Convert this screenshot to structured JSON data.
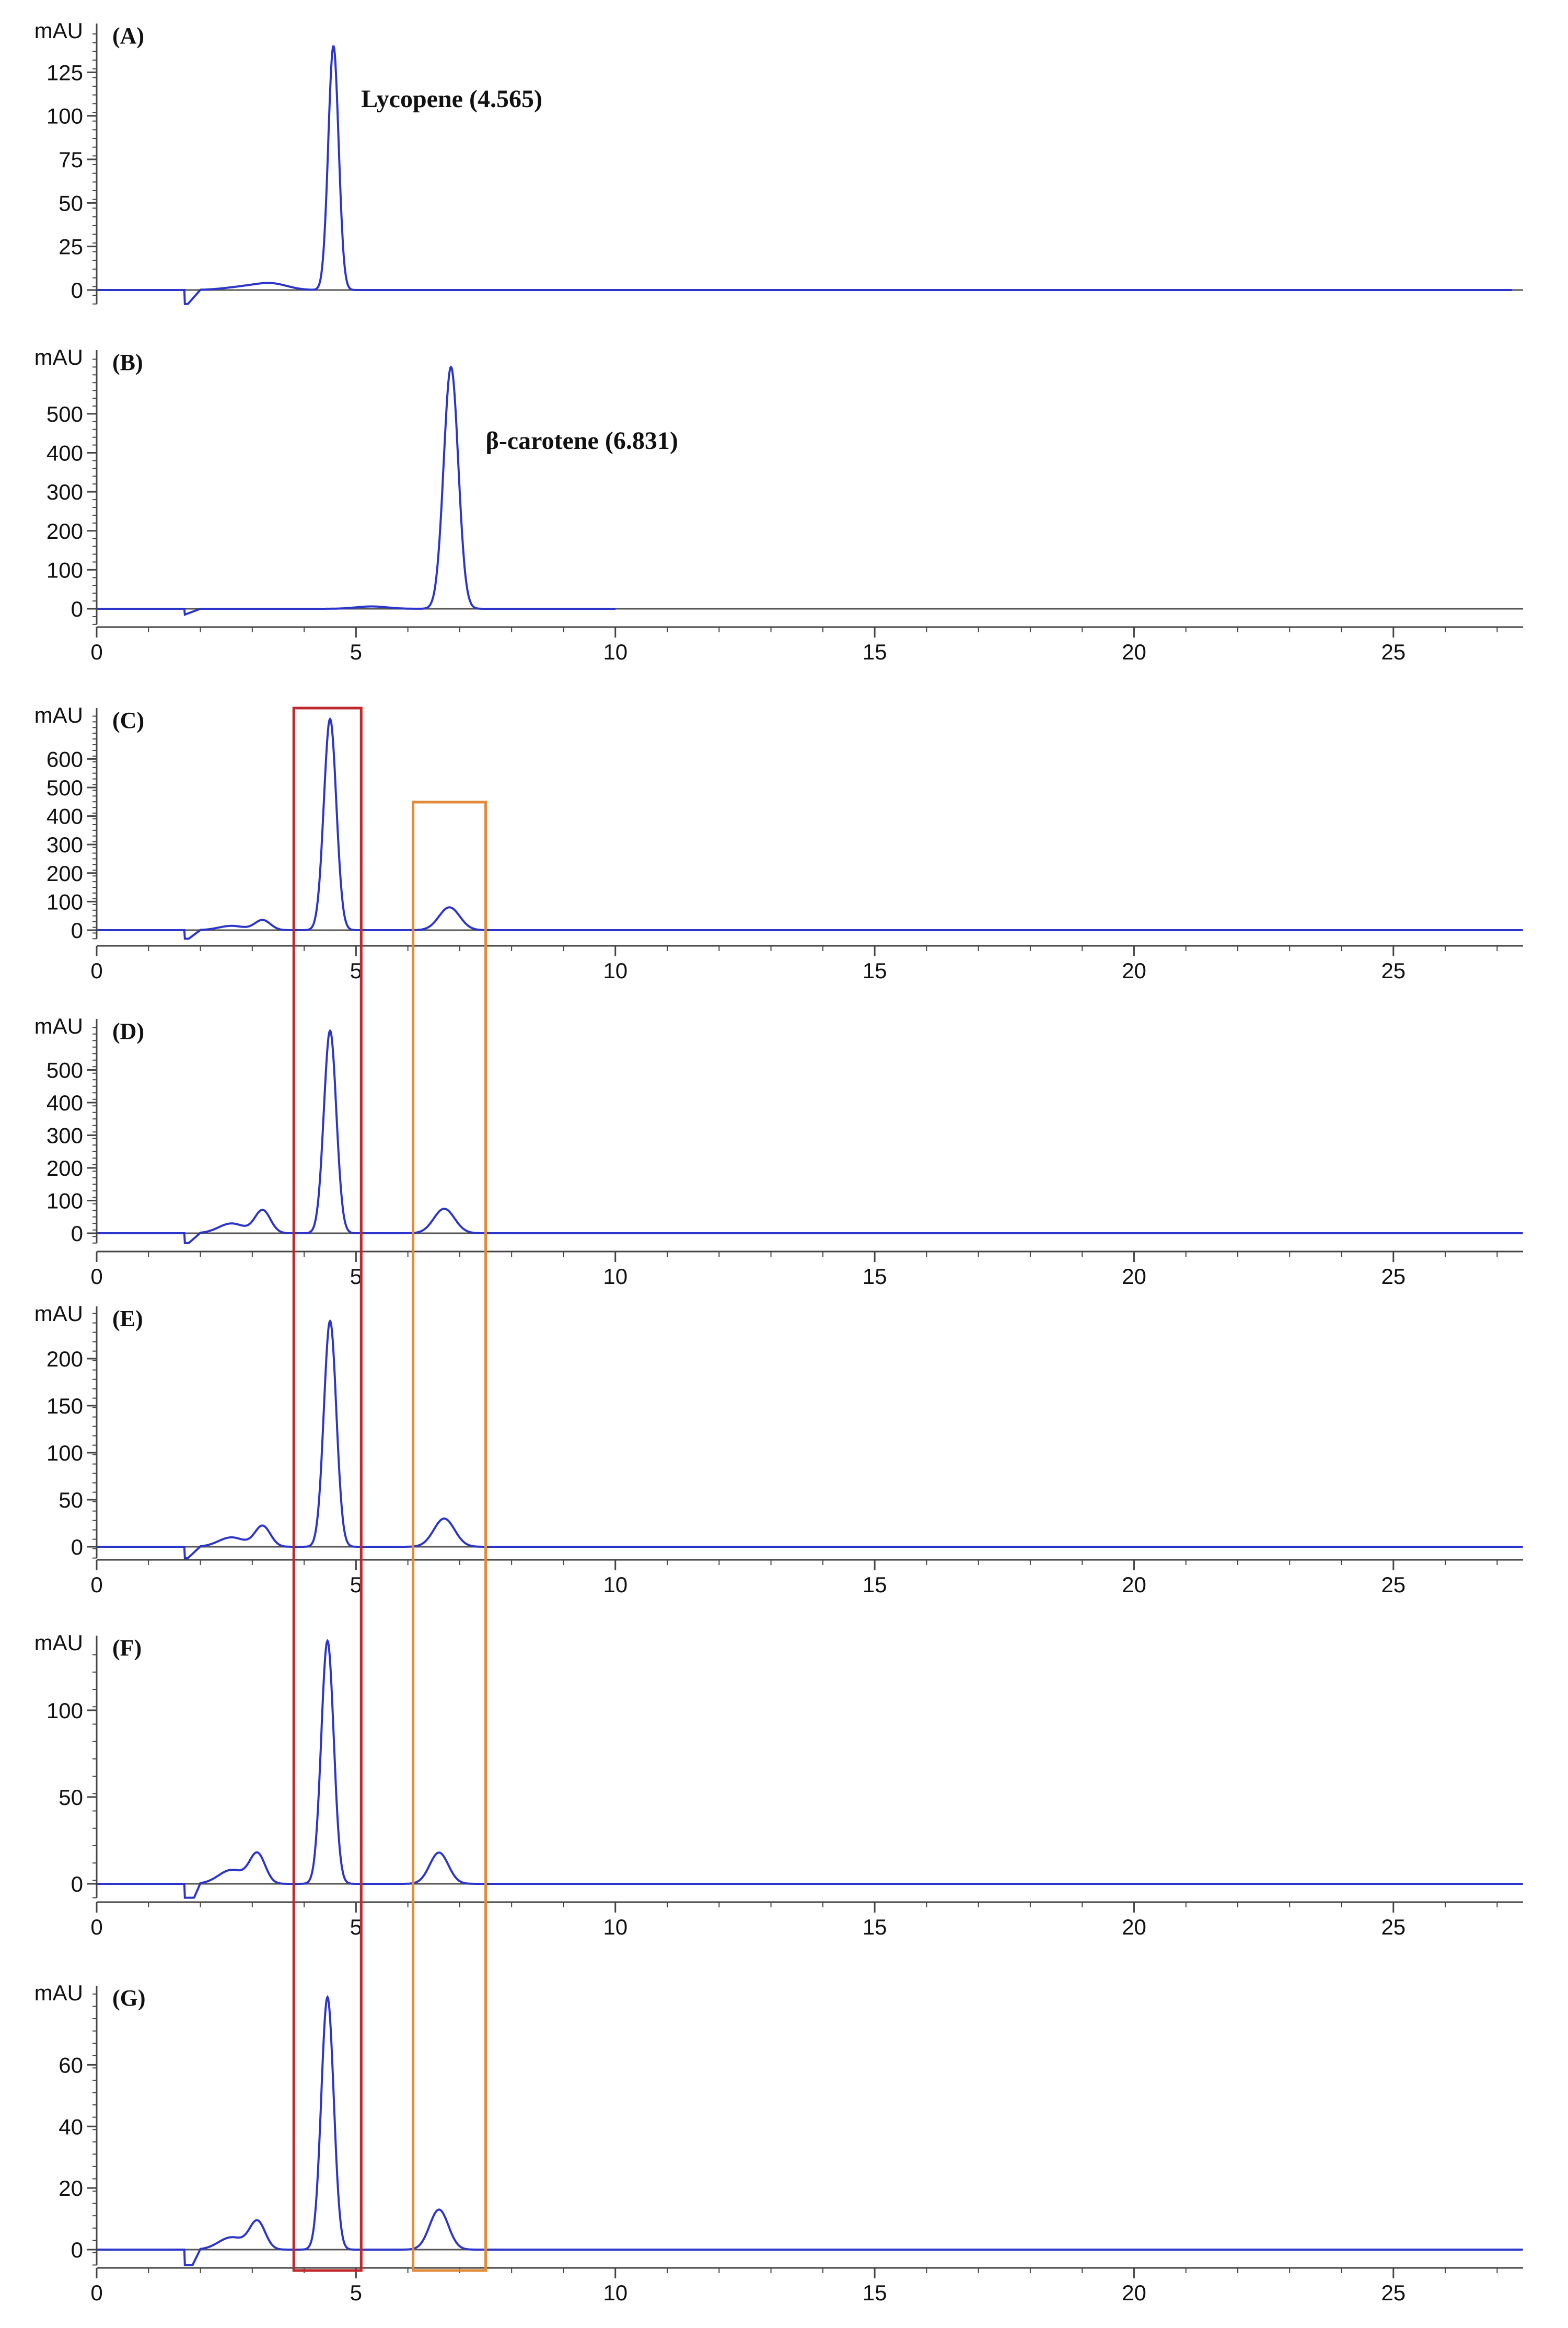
{
  "figure": {
    "colors": {
      "trace": "#2b35c9",
      "trace_dark": "#1c1f6b",
      "axis": "#444444",
      "baseline": "#555555",
      "text": "#111111",
      "box_lycopene": "#c0292b",
      "box_bcarotene": "#e08a3a"
    },
    "boxes": [
      {
        "name": "lycopene-window",
        "x0": 3.8,
        "x1": 5.1,
        "color_key": "box_lycopene"
      },
      {
        "name": "bcarotene-window",
        "x0": 6.1,
        "x1": 7.5,
        "color_key": "box_bcarotene"
      }
    ]
  },
  "chart_data": [
    {
      "type": "line",
      "panel": "(A)",
      "ylabel": "mAU",
      "xlim": [
        0,
        27.5
      ],
      "ylim": [
        -8,
        150
      ],
      "yticks": [
        0,
        25,
        50,
        75,
        100,
        125
      ],
      "xticks": [],
      "annotation": {
        "text": "Lycopene (4.565)",
        "x": 5.1,
        "y": 105
      },
      "series": [
        {
          "peaks": [
            [
              4.565,
              140,
              0.1
            ],
            [
              3.4,
              3,
              0.3
            ],
            [
              2.9,
              2,
              0.4
            ]
          ],
          "dip": [
            1.7,
            -10
          ],
          "trace_end": 27.3
        }
      ]
    },
    {
      "type": "line",
      "panel": "(B)",
      "ylabel": "mAU",
      "xlim": [
        0,
        27.5
      ],
      "ylim": [
        -40,
        650
      ],
      "yticks": [
        0,
        100,
        200,
        300,
        400,
        500
      ],
      "xticks": [
        0,
        5,
        10,
        15,
        20,
        25
      ],
      "annotation": {
        "text": "β-carotene (6.831)",
        "x": 7.5,
        "y": 410
      },
      "series": [
        {
          "peaks": [
            [
              6.831,
              620,
              0.14
            ],
            [
              5.3,
              6,
              0.3
            ]
          ],
          "dip": [
            1.7,
            -15
          ],
          "trace_end": 10
        }
      ]
    },
    {
      "type": "line",
      "panel": "(C)",
      "ylabel": "mAU",
      "xlim": [
        0,
        27.5
      ],
      "ylim": [
        -30,
        760
      ],
      "yticks": [
        0,
        100,
        200,
        300,
        400,
        500,
        600
      ],
      "xticks": [
        0,
        5,
        10,
        15,
        20,
        25
      ],
      "series": [
        {
          "peaks": [
            [
              4.5,
              740,
              0.12
            ],
            [
              6.8,
              80,
              0.2
            ],
            [
              3.2,
              35,
              0.15
            ],
            [
              2.6,
              15,
              0.25
            ]
          ],
          "dip": [
            1.7,
            -40
          ],
          "trace_end": 27.5
        }
      ]
    },
    {
      "type": "line",
      "panel": "(D)",
      "ylabel": "mAU",
      "xlim": [
        0,
        27.5
      ],
      "ylim": [
        -30,
        640
      ],
      "yticks": [
        0,
        100,
        200,
        300,
        400,
        500
      ],
      "xticks": [
        0,
        5,
        10,
        15,
        20,
        25
      ],
      "series": [
        {
          "peaks": [
            [
              4.5,
              620,
              0.12
            ],
            [
              6.7,
              75,
              0.2
            ],
            [
              3.2,
              70,
              0.15
            ],
            [
              2.6,
              30,
              0.25
            ]
          ],
          "dip": [
            1.7,
            -40
          ],
          "trace_end": 27.5
        }
      ]
    },
    {
      "type": "line",
      "panel": "(E)",
      "ylabel": "mAU",
      "xlim": [
        0,
        27.5
      ],
      "ylim": [
        -12,
        250
      ],
      "yticks": [
        0,
        50,
        100,
        150,
        200
      ],
      "xticks": [
        0,
        5,
        10,
        15,
        20,
        25
      ],
      "series": [
        {
          "peaks": [
            [
              4.5,
              240,
              0.12
            ],
            [
              6.7,
              30,
              0.2
            ],
            [
              3.2,
              22,
              0.15
            ],
            [
              2.6,
              10,
              0.25
            ]
          ],
          "dip": [
            1.7,
            -15
          ],
          "trace_end": 27.5
        }
      ]
    },
    {
      "type": "line",
      "panel": "(F)",
      "ylabel": "mAU",
      "xlim": [
        0,
        27.5
      ],
      "ylim": [
        -8,
        140
      ],
      "yticks": [
        0,
        50,
        100
      ],
      "xticks": [
        0,
        5,
        10,
        15,
        20,
        25
      ],
      "series": [
        {
          "peaks": [
            [
              4.45,
              140,
              0.12
            ],
            [
              6.6,
              18,
              0.18
            ],
            [
              3.1,
              17,
              0.15
            ],
            [
              2.6,
              8,
              0.25
            ]
          ],
          "dip": [
            1.7,
            -20
          ],
          "trace_end": 27.5
        }
      ]
    },
    {
      "type": "line",
      "panel": "(G)",
      "ylabel": "mAU",
      "xlim": [
        0,
        27.5
      ],
      "ylim": [
        -5,
        84
      ],
      "yticks": [
        0,
        20,
        40,
        60
      ],
      "xticks": [
        0,
        5,
        10,
        15,
        20,
        25
      ],
      "series": [
        {
          "peaks": [
            [
              4.45,
              82,
              0.12
            ],
            [
              6.6,
              13,
              0.18
            ],
            [
              3.1,
              9,
              0.15
            ],
            [
              2.6,
              4,
              0.25
            ]
          ],
          "dip": [
            1.7,
            -10
          ],
          "trace_end": 27.5
        }
      ]
    }
  ]
}
